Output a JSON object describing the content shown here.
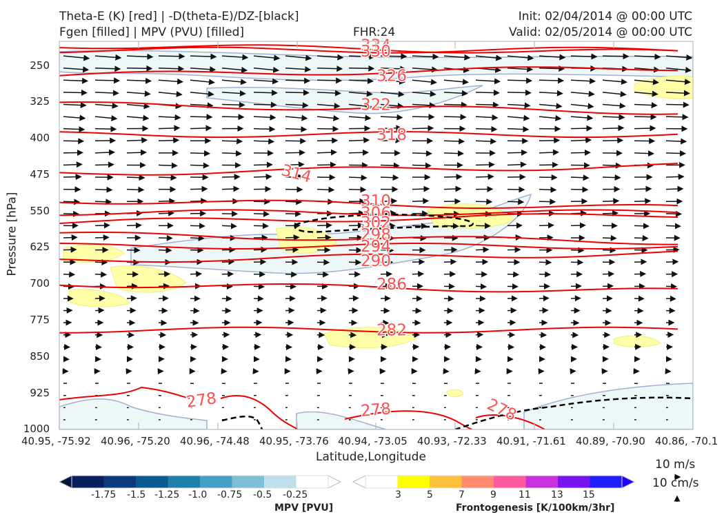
{
  "header": {
    "title_line1": "Theta-E (K) [red] | -D(theta-E)/DZ-[black]",
    "title_line2": "Fgen [filled] | MPV (PVU) [filled]",
    "fhr": "FHR:24",
    "init": "Init: 02/04/2014 @ 00:00 UTC",
    "valid": "Valid: 02/05/2014 @ 00:00 UTC"
  },
  "chart_data": {
    "type": "cross-section",
    "ylabel": "Pressure [hPa]",
    "xlabel": "Latitude,Longitude",
    "ylim": [
      1000,
      200
    ],
    "y_ticks": [
      "250",
      "325",
      "400",
      "475",
      "550",
      "625",
      "700",
      "775",
      "850",
      "925",
      "1000"
    ],
    "x_ticks": [
      "40.95, -75.92",
      "40.96, -75.20",
      "40.96, -74.48",
      "40.95, -73.76",
      "40.94, -73.05",
      "40.93, -72.33",
      "40.91, -71.61",
      "40.89, -70.90",
      "40.86, -70.1"
    ],
    "theta_e_contour_labels": [
      "334",
      "330",
      "326",
      "322",
      "318",
      "314",
      "310",
      "306",
      "302",
      "298",
      "294",
      "290",
      "286",
      "282",
      "278",
      "278",
      "278"
    ],
    "theta_e_levels": [
      {
        "value": 334,
        "p": 208
      },
      {
        "value": 330,
        "p": 218
      },
      {
        "value": 326,
        "p": 270
      },
      {
        "value": 322,
        "p": 330
      },
      {
        "value": 318,
        "p": 392
      },
      {
        "value": 314,
        "p": 472
      },
      {
        "value": 310,
        "p": 528
      },
      {
        "value": 306,
        "p": 553
      },
      {
        "value": 302,
        "p": 573
      },
      {
        "value": 298,
        "p": 598
      },
      {
        "value": 294,
        "p": 622
      },
      {
        "value": 290,
        "p": 652
      },
      {
        "value": 286,
        "p": 700
      },
      {
        "value": 282,
        "p": 795
      }
    ],
    "wind_reference": [
      "10 m/s",
      "10 cm/s"
    ],
    "colorbars": [
      {
        "title": "MPV [PVU]",
        "labels": [
          "-1.75",
          "-1.5",
          "-1.25",
          "-1.0",
          "-0.75",
          "-0.5",
          "-0.25"
        ],
        "colors": [
          "#08205e",
          "#0b3b7a",
          "#0b5a8f",
          "#1f80ab",
          "#44a0c4",
          "#7fbfd6",
          "#bfe0ea",
          "#ffffff"
        ]
      },
      {
        "title": "Frontogenesis [K/100km/3hr]",
        "labels": [
          "3",
          "5",
          "7",
          "9",
          "11",
          "13",
          "15"
        ],
        "colors": [
          "#ffffff",
          "#ffff00",
          "#ffc03c",
          "#ff8c6e",
          "#ff5aa0",
          "#c832dc",
          "#7814f0",
          "#1e1eff"
        ]
      }
    ]
  }
}
